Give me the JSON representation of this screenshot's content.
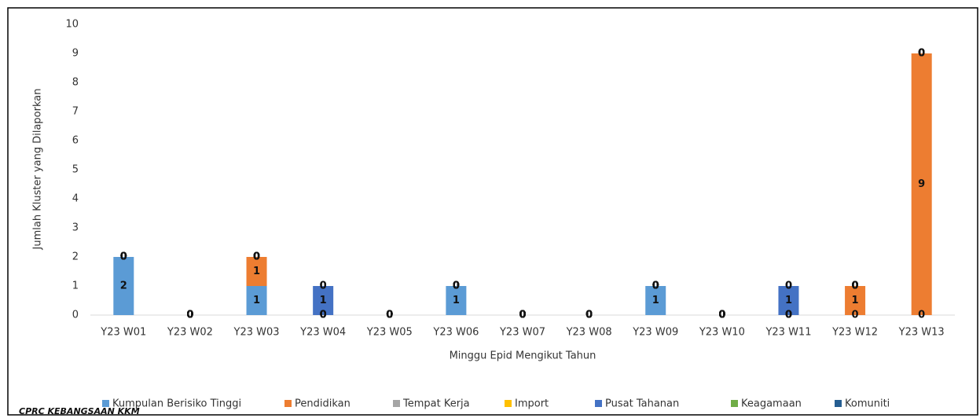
{
  "chart_data": {
    "type": "stacked_bar",
    "y_axis_label": "Jumlah Kluster yang Dilaporkan",
    "x_axis_label": "Minggu Epid Mengikut Tahun",
    "source": "CPRC KEBANGSAAN KKM",
    "categories": [
      "Y23 W01",
      "Y23 W02",
      "Y23 W03",
      "Y23 W04",
      "Y23 W05",
      "Y23 W06",
      "Y23 W07",
      "Y23 W08",
      "Y23 W09",
      "Y23 W10",
      "Y23 W11",
      "Y23 W12",
      "Y23 W13"
    ],
    "series": [
      {
        "name": "Kumpulan Berisiko Tinggi",
        "color": "#5b9bd5",
        "values": [
          2,
          0,
          1,
          0,
          0,
          1,
          0,
          0,
          1,
          0,
          0,
          0,
          0
        ]
      },
      {
        "name": "Pendidikan",
        "color": "#ed7d31",
        "values": [
          0,
          0,
          1,
          0,
          0,
          0,
          0,
          0,
          0,
          0,
          0,
          1,
          9
        ]
      },
      {
        "name": "Tempat Kerja",
        "color": "#a5a5a5",
        "values": [
          0,
          0,
          0,
          0,
          0,
          0,
          0,
          0,
          0,
          0,
          0,
          0,
          0
        ]
      },
      {
        "name": "Import",
        "color": "#ffc000",
        "values": [
          0,
          0,
          0,
          0,
          0,
          0,
          0,
          0,
          0,
          0,
          0,
          0,
          0
        ]
      },
      {
        "name": "Pusat Tahanan",
        "color": "#4472c4",
        "values": [
          0,
          0,
          0,
          1,
          0,
          0,
          0,
          0,
          0,
          0,
          1,
          0,
          0
        ]
      },
      {
        "name": "Keagamaan",
        "color": "#70ad47",
        "values": [
          0,
          0,
          0,
          0,
          0,
          0,
          0,
          0,
          0,
          0,
          0,
          0,
          0
        ]
      },
      {
        "name": "Komuniti",
        "color": "#255e91",
        "values": [
          0,
          0,
          0,
          0,
          0,
          0,
          0,
          0,
          0,
          0,
          0,
          0,
          0
        ]
      }
    ],
    "ylim": [
      0,
      10
    ],
    "yticks": [
      0,
      1,
      2,
      3,
      4,
      5,
      6,
      7,
      8,
      9,
      10
    ],
    "grid": false,
    "legend": "bottom"
  }
}
